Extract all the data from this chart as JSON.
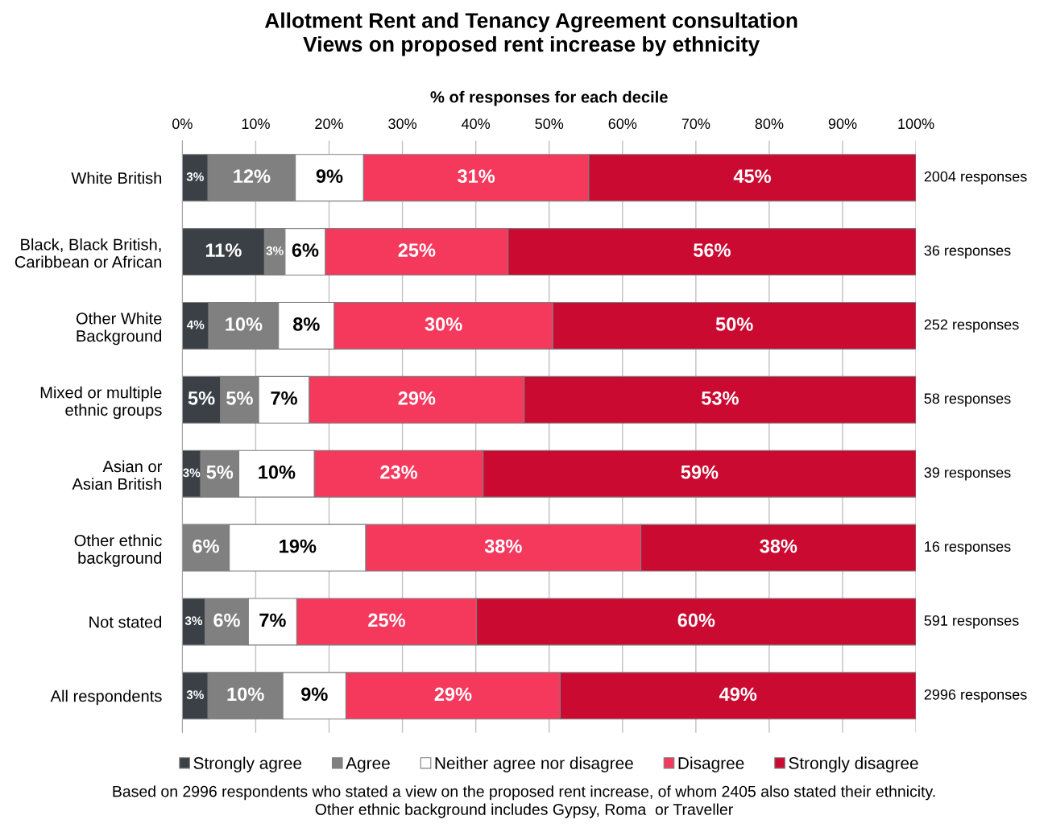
{
  "chart_data": {
    "type": "bar",
    "orientation": "horizontal",
    "stacked": true,
    "title": "Allotment Rent and Tenancy Agreement consultation\nViews on proposed rent increase by ethnicity",
    "xlabel": "% of responses for each decile",
    "categories": [
      "White British",
      "Black, Black British,\nCaribbean or African",
      "Other White\nBackground",
      "Mixed or multiple\nethnic groups",
      "Asian or\nAsian British",
      "Other ethnic\nbackground",
      "Not stated",
      "All respondents"
    ],
    "series": [
      {
        "name": "Strongly agree",
        "color": "#3b4047",
        "values": [
          3.5,
          11.2,
          3.6,
          5.2,
          2.5,
          0,
          3.1,
          3.5
        ],
        "value_labels": [
          "3%",
          "11%",
          "4%",
          "5%",
          "3%",
          null,
          "3%",
          "3%"
        ]
      },
      {
        "name": "Agree",
        "color": "#808080",
        "values": [
          11.9,
          2.8,
          9.5,
          5.2,
          5.2,
          6.4,
          5.9,
          10.2
        ],
        "value_labels": [
          "12%",
          "3%",
          "10%",
          "5%",
          "5%",
          "6%",
          "6%",
          "10%"
        ]
      },
      {
        "name": "Neither agree nor disagree",
        "color": "#ffffff",
        "values": [
          9.3,
          5.5,
          7.6,
          6.9,
          10.3,
          18.6,
          6.6,
          8.6
        ],
        "value_labels": [
          "9%",
          "6%",
          "8%",
          "7%",
          "10%",
          "19%",
          "7%",
          "9%"
        ]
      },
      {
        "name": "Disagree",
        "color": "#f4395d",
        "values": [
          30.7,
          24.9,
          29.8,
          29.3,
          23.0,
          37.5,
          24.5,
          29.2
        ],
        "value_labels": [
          "31%",
          "25%",
          "30%",
          "29%",
          "23%",
          "38%",
          "25%",
          "29%"
        ]
      },
      {
        "name": "Strongly disagree",
        "color": "#cb0a31",
        "values": [
          44.6,
          55.6,
          49.5,
          53.4,
          59.0,
          37.5,
          59.9,
          48.5
        ],
        "value_labels": [
          "45%",
          "56%",
          "50%",
          "53%",
          "59%",
          "38%",
          "60%",
          "49%"
        ]
      }
    ],
    "xlim": [
      0,
      100
    ],
    "xticks": [
      {
        "value": 0,
        "label": "0%"
      },
      {
        "value": 10,
        "label": "10%"
      },
      {
        "value": 20,
        "label": "20%"
      },
      {
        "value": 30,
        "label": "30%"
      },
      {
        "value": 40,
        "label": "40%"
      },
      {
        "value": 50,
        "label": "50%"
      },
      {
        "value": 60,
        "label": "60%"
      },
      {
        "value": 70,
        "label": "70%"
      },
      {
        "value": 80,
        "label": "80%"
      },
      {
        "value": 90,
        "label": "90%"
      },
      {
        "value": 100,
        "label": "100%"
      }
    ],
    "grid": "x",
    "legend": "bottom",
    "annotations": [
      "2004 responses",
      "36 responses",
      "252 responses",
      "58 responses",
      "39 responses",
      "16 responses",
      "591 responses",
      "2996 responses",
      "Based on 2996 respondents who stated a view on the proposed rent increase, of whom 2405 also stated their ethnicity.\nOther ethnic background includes Gypsy, Roma  or Traveller"
    ]
  }
}
